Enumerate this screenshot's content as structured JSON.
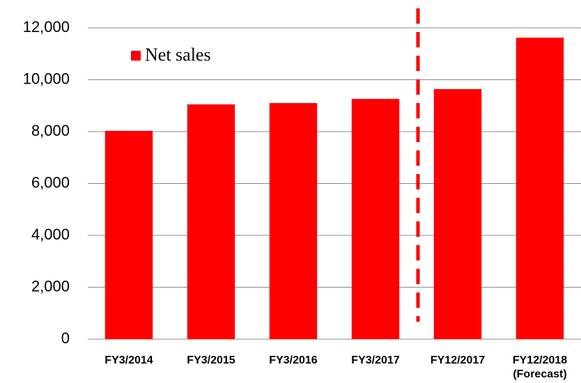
{
  "chart_data": {
    "type": "bar",
    "categories": [
      "FY3/2014",
      "FY3/2015",
      "FY3/2016",
      "FY3/2017",
      "FY12/2017",
      "FY12/2018\n(Forecast)"
    ],
    "series": [
      {
        "name": "Net sales",
        "color": "#ff0000",
        "values": [
          8030,
          9050,
          9100,
          9260,
          9640,
          11620
        ]
      }
    ],
    "ylim": [
      0,
      12000
    ],
    "yticks": [
      0,
      {
        "value": 2000,
        "label": "2,000"
      },
      {
        "value": 4000,
        "label": "4,000"
      },
      {
        "value": 6000,
        "label": "6,000"
      },
      {
        "value": 8000,
        "label": "8,000"
      },
      {
        "value": 10000,
        "label": "10,000"
      },
      {
        "value": 12000,
        "label": "12,000"
      }
    ],
    "grid": true
  }
}
